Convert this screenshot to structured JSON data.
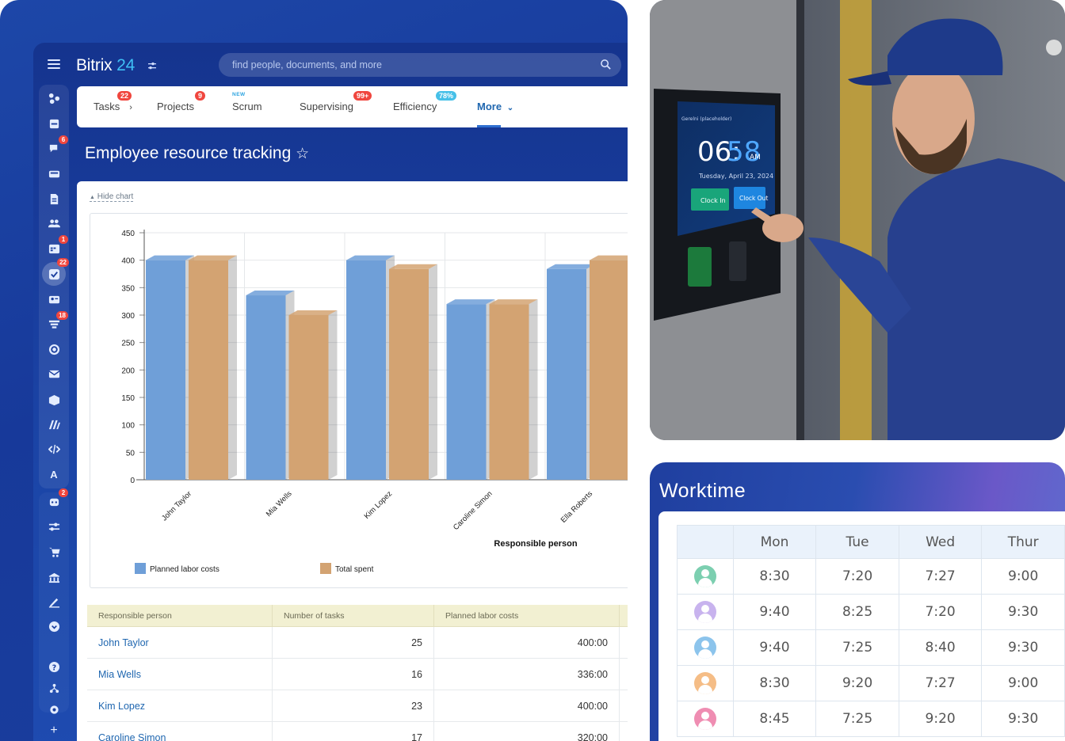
{
  "app": {
    "logo_text": "Bitrix",
    "logo_num": "24",
    "search_placeholder": "find people, documents, and more",
    "sidebar": {
      "badges": {
        "chat": "6",
        "calendar": "1",
        "tasks": "22",
        "crm": "18",
        "robots": "2"
      },
      "letter": "A"
    },
    "tabs": [
      {
        "label": "Tasks",
        "badge": "22"
      },
      {
        "label": "Projects",
        "badge": "9"
      },
      {
        "label": "Scrum",
        "tag": "NEW"
      },
      {
        "label": "Supervising",
        "badge": "99+"
      },
      {
        "label": "Efficiency",
        "badge": "78%"
      },
      {
        "label": "More"
      }
    ],
    "page_title": "Employee resource tracking",
    "hide_chart": "Hide chart",
    "table": {
      "headers": [
        "Responsible person",
        "Number of tasks",
        "Planned labor costs"
      ],
      "rows": [
        {
          "name": "John Taylor",
          "tasks": "25",
          "planned": "400:00"
        },
        {
          "name": "Mia Wells",
          "tasks": "16",
          "planned": "336:00"
        },
        {
          "name": "Kim Lopez",
          "tasks": "23",
          "planned": "400:00"
        },
        {
          "name": "Caroline Simon",
          "tasks": "17",
          "planned": "320:00"
        }
      ]
    }
  },
  "chart_data": {
    "type": "bar",
    "categories": [
      "John Taylor",
      "Mia Wells",
      "Kim Lopez",
      "Caroline Simon",
      "Ella Roberts"
    ],
    "series": [
      {
        "name": "Planned labor costs",
        "values": [
          400,
          336,
          400,
          320,
          384
        ],
        "color": "#6f9fd8"
      },
      {
        "name": "Total spent",
        "values": [
          400,
          300,
          384,
          320,
          400
        ],
        "color": "#d3a372"
      }
    ],
    "xlabel": "Responsible person",
    "ylabel": "",
    "ylim": [
      0,
      450
    ],
    "yticks": [
      0,
      50,
      100,
      150,
      200,
      250,
      300,
      350,
      400,
      450
    ],
    "grid": true,
    "legend": "bottom-left"
  },
  "photo": {
    "time_hm": "06:",
    "time_m": "58",
    "ampm": "AM",
    "date": "Tuesday, April 23, 2024",
    "clock_in": "Clock In",
    "clock_out": "Clock Out",
    "header": "Gerelni (placeholder)"
  },
  "worktime": {
    "title": "Worktime",
    "days": [
      "Mon",
      "Tue",
      "Wed",
      "Thur"
    ],
    "rows": [
      {
        "avatar_color": "#7ccfb0",
        "times": [
          "8:30",
          "7:20",
          "7:27",
          "9:00"
        ]
      },
      {
        "avatar_color": "#c8b3ee",
        "times": [
          "9:40",
          "8:25",
          "7:20",
          "9:30"
        ]
      },
      {
        "avatar_color": "#8cc4ec",
        "times": [
          "9:40",
          "7:25",
          "8:40",
          "9:30"
        ]
      },
      {
        "avatar_color": "#f5bd86",
        "times": [
          "8:30",
          "9:20",
          "7:27",
          "9:00"
        ]
      },
      {
        "avatar_color": "#ef8db2",
        "times": [
          "8:45",
          "7:25",
          "9:20",
          "9:30"
        ]
      }
    ]
  }
}
